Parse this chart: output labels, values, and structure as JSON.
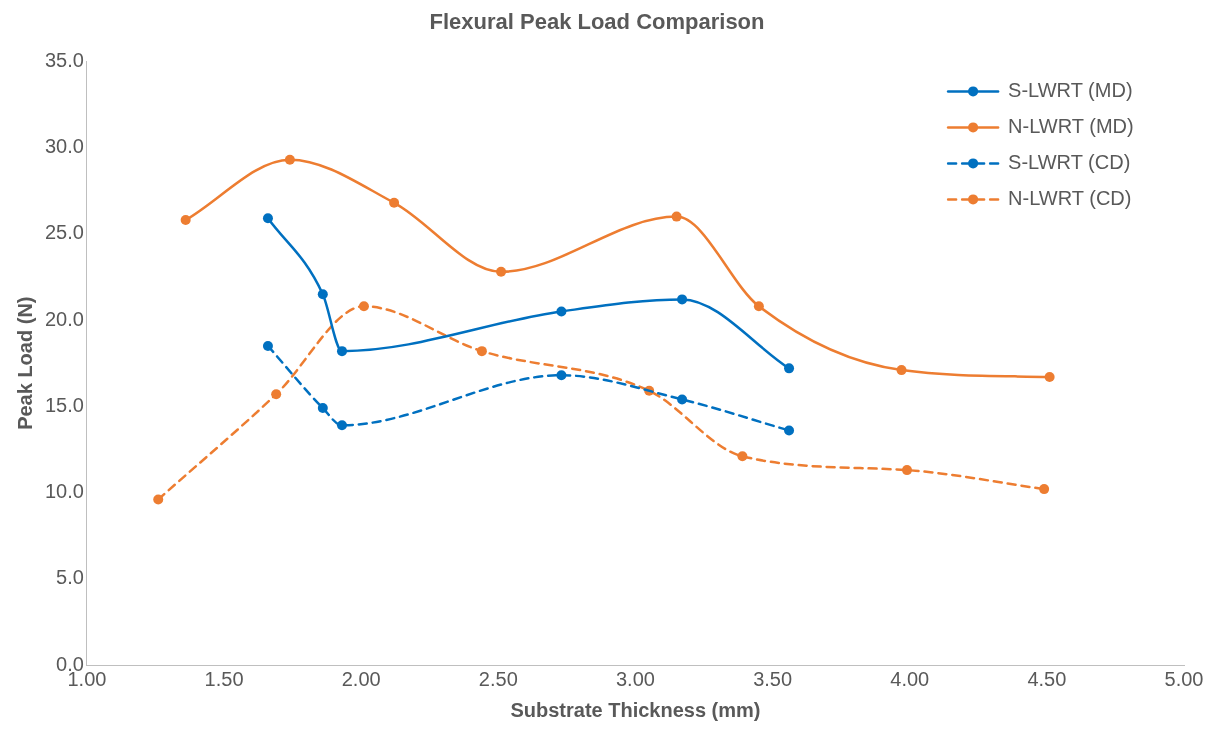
{
  "chart_data": {
    "type": "line",
    "title": "Flexural Peak Load Comparison",
    "xlabel": "Substrate Thickness (mm)",
    "ylabel": "Peak Load (N)",
    "xlim": [
      1.0,
      5.0
    ],
    "xticks": [
      {
        "value": 1,
        "label": "1.00"
      },
      {
        "value": 1.5,
        "label": "1.50"
      },
      {
        "value": 2,
        "label": "2.00"
      },
      {
        "value": 2.5,
        "label": "2.50"
      },
      {
        "value": 3,
        "label": "3.00"
      },
      {
        "value": 3.5,
        "label": "3.50"
      },
      {
        "value": 4,
        "label": "4.00"
      },
      {
        "value": 4.5,
        "label": "4.50"
      },
      {
        "value": 5,
        "label": "5.00"
      }
    ],
    "ylim": [
      0,
      35
    ],
    "yticks": [
      {
        "value": 0,
        "label": "0.0"
      },
      {
        "value": 5,
        "label": "5.0"
      },
      {
        "value": 10,
        "label": "10.0"
      },
      {
        "value": 15,
        "label": "15.0"
      },
      {
        "value": 20,
        "label": "20.0"
      },
      {
        "value": 25,
        "label": "25.0"
      },
      {
        "value": 30,
        "label": "30.0"
      },
      {
        "value": 35,
        "label": "35.0"
      }
    ],
    "grid": false,
    "legend": "top right",
    "marker": "circle",
    "series": [
      {
        "name": "S-LWRT (MD)",
        "color": "#0070c0",
        "line_style": "solid",
        "x": [
          1.66,
          1.86,
          1.93,
          2.73,
          3.17,
          3.56
        ],
        "values": [
          25.9,
          21.5,
          18.2,
          20.5,
          21.2,
          17.2
        ]
      },
      {
        "name": "N-LWRT (MD)",
        "color": "#ed7d31",
        "line_style": "solid",
        "x": [
          1.36,
          1.74,
          2.12,
          2.51,
          3.15,
          3.45,
          3.97,
          4.51
        ],
        "values": [
          25.8,
          29.3,
          26.8,
          22.8,
          26.0,
          20.8,
          17.1,
          16.7
        ]
      },
      {
        "name": "S-LWRT (CD)",
        "color": "#0070c0",
        "line_style": "dashed",
        "x": [
          1.66,
          1.86,
          1.93,
          2.73,
          3.17,
          3.56
        ],
        "values": [
          18.5,
          14.9,
          13.9,
          16.8,
          15.4,
          13.6
        ]
      },
      {
        "name": "N-LWRT (CD)",
        "color": "#ed7d31",
        "line_style": "dashed",
        "x": [
          1.26,
          1.69,
          2.01,
          2.44,
          3.05,
          3.39,
          3.99,
          4.49
        ],
        "values": [
          9.6,
          15.7,
          20.8,
          18.2,
          15.9,
          12.1,
          11.3,
          10.2
        ]
      }
    ]
  }
}
